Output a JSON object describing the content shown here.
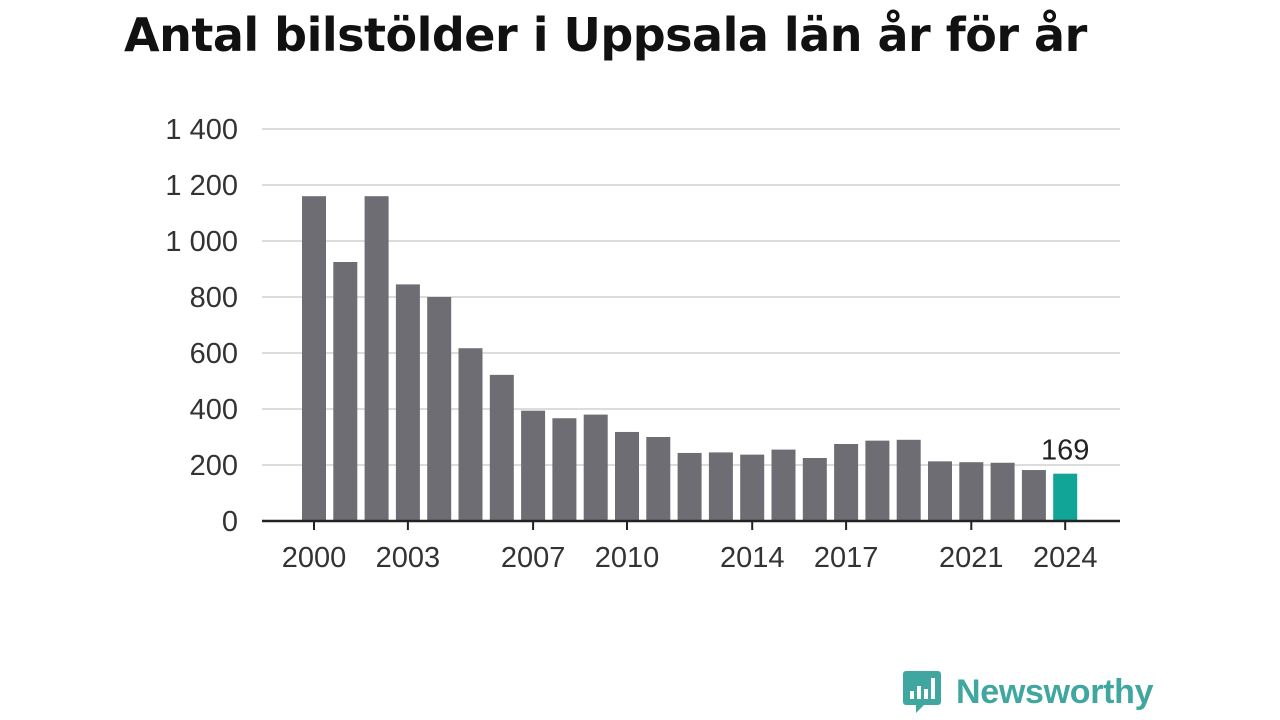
{
  "chart_data": {
    "type": "bar",
    "title": "Antal bilstölder i Uppsala län år för år",
    "xlabel": "",
    "ylabel": "",
    "categories": [
      "2000",
      "2001",
      "2002",
      "2003",
      "2004",
      "2005",
      "2006",
      "2007",
      "2008",
      "2009",
      "2010",
      "2011",
      "2012",
      "2013",
      "2014",
      "2015",
      "2016",
      "2017",
      "2018",
      "2019",
      "2020",
      "2021",
      "2022",
      "2023",
      "2024"
    ],
    "values": [
      1160,
      925,
      1160,
      845,
      800,
      617,
      522,
      394,
      367,
      380,
      318,
      300,
      243,
      245,
      237,
      255,
      225,
      275,
      287,
      290,
      213,
      210,
      208,
      182,
      169
    ],
    "ylim": [
      0,
      1400
    ],
    "yticks": [
      0,
      200,
      400,
      600,
      800,
      1000,
      1200,
      1400
    ],
    "ytick_labels": [
      "0",
      "200",
      "400",
      "600",
      "800",
      "1 000",
      "1 200",
      "1 400"
    ],
    "xtick_labels": [
      "2000",
      "2003",
      "2007",
      "2010",
      "2014",
      "2017",
      "2021",
      "2024"
    ],
    "highlight": {
      "category": "2024",
      "label": "169"
    },
    "grid": true,
    "legend": "none",
    "colors": {
      "bar": "#6e6d73",
      "highlight": "#11a597",
      "grid": "#dcdcdc",
      "axis": "#222222"
    }
  },
  "logo": {
    "text": "Newsworthy",
    "icon": "newsworthy-chart-bubble-icon",
    "color": "#3fa79f"
  }
}
